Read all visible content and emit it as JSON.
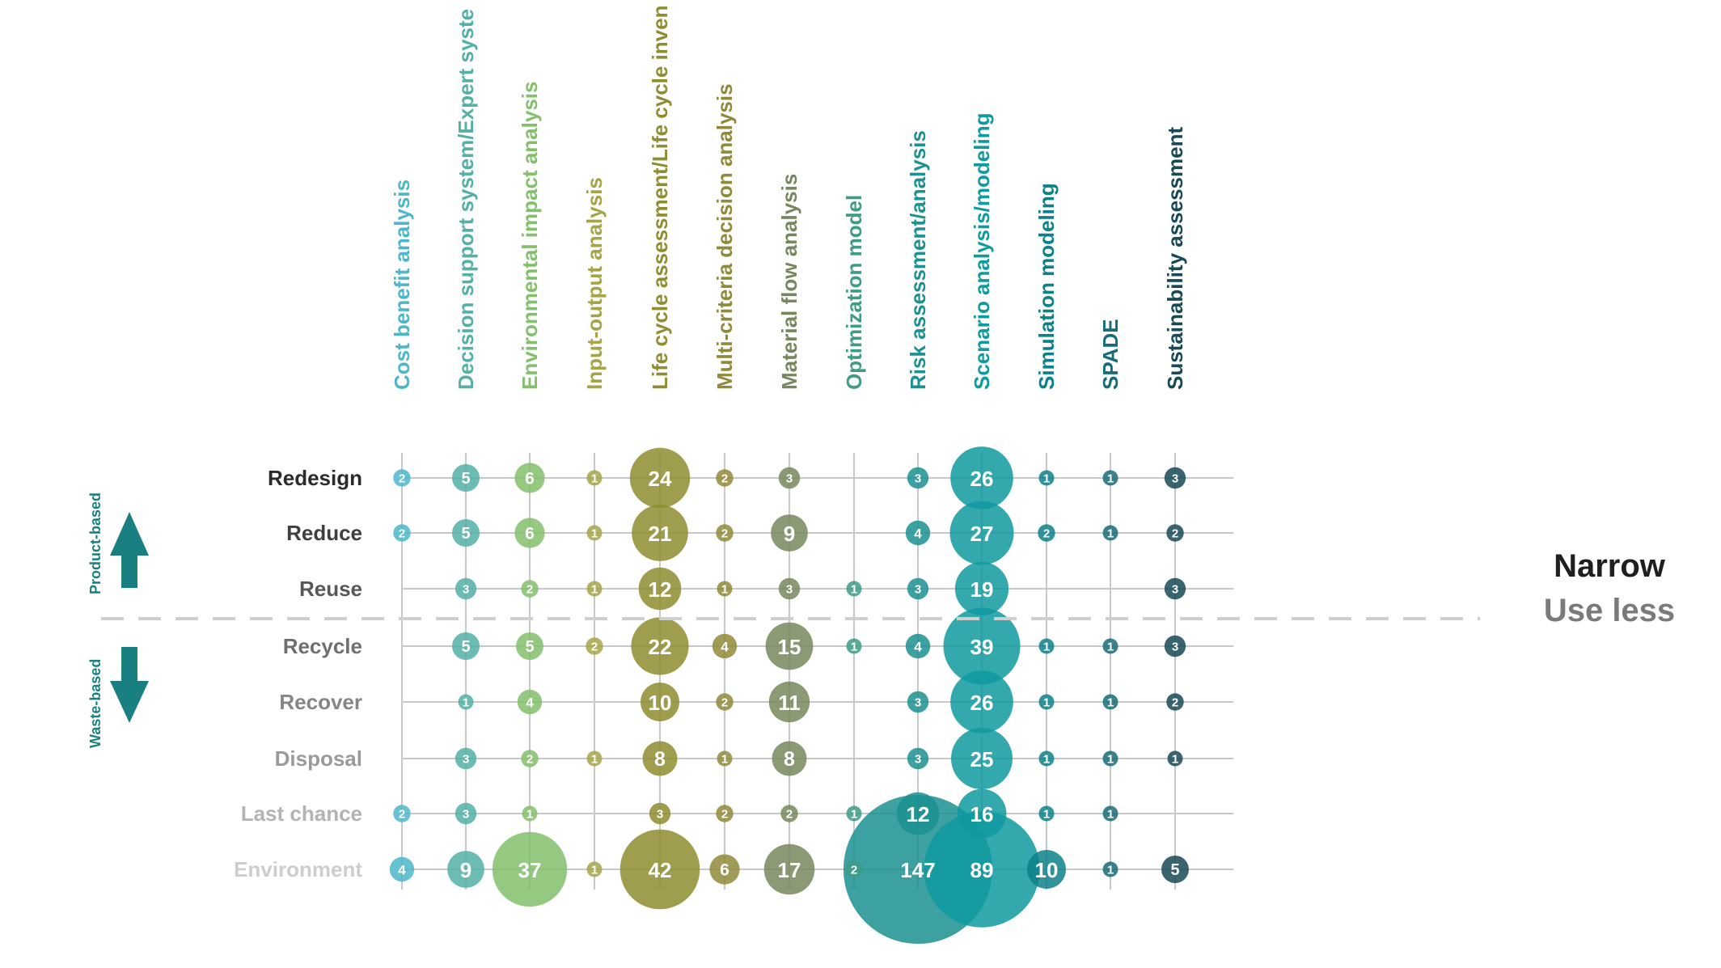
{
  "chart_data": {
    "type": "bubble-matrix",
    "columns": [
      {
        "label": "Cost benefit analysis",
        "color": "#4bb7c9"
      },
      {
        "label": "Decision support system/Expert syste",
        "color": "#52b0a6"
      },
      {
        "label": "Environmental impact analysis",
        "color": "#82c06b"
      },
      {
        "label": "Input-output analysis",
        "color": "#a5a447"
      },
      {
        "label": "Life cycle assessment/Life cycle inven",
        "color": "#8e8d2f"
      },
      {
        "label": "Multi-criteria decision analysis",
        "color": "#8f8a3a"
      },
      {
        "label": "Material flow analysis",
        "color": "#77875d"
      },
      {
        "label": "Optimization model",
        "color": "#3d9b86"
      },
      {
        "label": "Risk assessment/analysis",
        "color": "#1b9192"
      },
      {
        "label": "Scenario analysis/modeling",
        "color": "#0f9aa0"
      },
      {
        "label": "Simulation modeling",
        "color": "#0d8189"
      },
      {
        "label": "SPADE",
        "color": "#166c78"
      },
      {
        "label": "Sustainability assessment",
        "color": "#174a56"
      }
    ],
    "rows": [
      {
        "label": "Redesign",
        "color": "#2b2b2b"
      },
      {
        "label": "Reduce",
        "color": "#3f3f3f"
      },
      {
        "label": "Reuse",
        "color": "#575757"
      },
      {
        "label": "Recycle",
        "color": "#6f6f6f"
      },
      {
        "label": "Recover",
        "color": "#858585"
      },
      {
        "label": "Disposal",
        "color": "#9a9a9a"
      },
      {
        "label": "Last chance",
        "color": "#b3b3b3"
      },
      {
        "label": "Environment",
        "color": "#cdcdcd"
      }
    ],
    "values": [
      [
        2,
        5,
        6,
        1,
        24,
        2,
        3,
        null,
        3,
        26,
        1,
        1,
        3
      ],
      [
        2,
        5,
        6,
        1,
        21,
        2,
        9,
        null,
        4,
        27,
        2,
        1,
        2
      ],
      [
        null,
        3,
        2,
        1,
        12,
        1,
        3,
        1,
        3,
        19,
        null,
        null,
        3
      ],
      [
        null,
        5,
        5,
        2,
        22,
        4,
        15,
        1,
        4,
        39,
        1,
        1,
        3
      ],
      [
        null,
        1,
        4,
        null,
        10,
        2,
        11,
        null,
        3,
        26,
        1,
        1,
        2
      ],
      [
        null,
        3,
        2,
        1,
        8,
        1,
        8,
        null,
        3,
        25,
        1,
        1,
        1
      ],
      [
        2,
        3,
        1,
        null,
        3,
        2,
        2,
        1,
        12,
        16,
        1,
        1,
        null
      ],
      [
        4,
        9,
        37,
        1,
        42,
        6,
        17,
        2,
        147,
        89,
        10,
        1,
        5
      ]
    ],
    "side_labels": {
      "top": "Product-based",
      "bottom": "Waste-based"
    },
    "scope": {
      "primary": "Narrow",
      "secondary": "Use less"
    },
    "colors": {
      "arrow": "#1a7f80",
      "grid": "#c8c8c8",
      "divider": "#cfcfcf",
      "scope_primary": "#1f1f1f",
      "scope_secondary": "#7a7a7a"
    }
  }
}
